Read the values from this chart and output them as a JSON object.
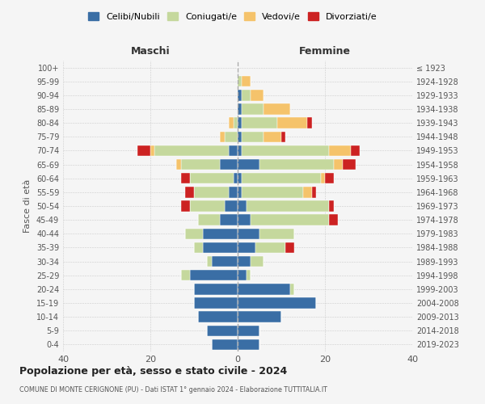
{
  "age_groups": [
    "0-4",
    "5-9",
    "10-14",
    "15-19",
    "20-24",
    "25-29",
    "30-34",
    "35-39",
    "40-44",
    "45-49",
    "50-54",
    "55-59",
    "60-64",
    "65-69",
    "70-74",
    "75-79",
    "80-84",
    "85-89",
    "90-94",
    "95-99",
    "100+"
  ],
  "birth_years": [
    "2019-2023",
    "2014-2018",
    "2009-2013",
    "2004-2008",
    "1999-2003",
    "1994-1998",
    "1989-1993",
    "1984-1988",
    "1979-1983",
    "1974-1978",
    "1969-1973",
    "1964-1968",
    "1959-1963",
    "1954-1958",
    "1949-1953",
    "1944-1948",
    "1939-1943",
    "1934-1938",
    "1929-1933",
    "1924-1928",
    "≤ 1923"
  ],
  "maschi": {
    "celibi": [
      6,
      7,
      9,
      10,
      10,
      11,
      6,
      8,
      8,
      4,
      3,
      2,
      1,
      4,
      2,
      0,
      0,
      0,
      0,
      0,
      0
    ],
    "coniugati": [
      0,
      0,
      0,
      0,
      0,
      2,
      1,
      2,
      4,
      5,
      8,
      8,
      10,
      9,
      17,
      3,
      1,
      0,
      0,
      0,
      0
    ],
    "vedovi": [
      0,
      0,
      0,
      0,
      0,
      0,
      0,
      0,
      0,
      0,
      0,
      0,
      0,
      1,
      1,
      1,
      1,
      0,
      0,
      0,
      0
    ],
    "divorziati": [
      0,
      0,
      0,
      0,
      0,
      0,
      0,
      0,
      0,
      0,
      2,
      2,
      2,
      0,
      3,
      0,
      0,
      0,
      0,
      0,
      0
    ]
  },
  "femmine": {
    "nubili": [
      5,
      5,
      10,
      18,
      12,
      2,
      3,
      4,
      5,
      3,
      2,
      1,
      1,
      5,
      1,
      1,
      1,
      1,
      1,
      0,
      0
    ],
    "coniugate": [
      0,
      0,
      0,
      0,
      1,
      1,
      3,
      7,
      8,
      18,
      19,
      14,
      18,
      17,
      20,
      5,
      8,
      5,
      2,
      1,
      0
    ],
    "vedove": [
      0,
      0,
      0,
      0,
      0,
      0,
      0,
      0,
      0,
      0,
      0,
      2,
      1,
      2,
      5,
      4,
      7,
      6,
      3,
      2,
      0
    ],
    "divorziate": [
      0,
      0,
      0,
      0,
      0,
      0,
      0,
      2,
      0,
      2,
      1,
      1,
      2,
      3,
      2,
      1,
      1,
      0,
      0,
      0,
      0
    ]
  },
  "colors": {
    "celibi_nubili": "#3a6ea5",
    "coniugati": "#c5d89d",
    "vedovi": "#f5c36b",
    "divorziati": "#cc2222"
  },
  "xlim": 40,
  "title": "Popolazione per età, sesso e stato civile - 2024",
  "subtitle": "COMUNE DI MONTE CERIGNONE (PU) - Dati ISTAT 1° gennaio 2024 - Elaborazione TUTTITALIA.IT",
  "ylabel_left": "Fasce di età",
  "xlabel_maschi": "Maschi",
  "xlabel_femmine": "Femmine",
  "legend_labels": [
    "Celibi/Nubili",
    "Coniugati/e",
    "Vedovi/e",
    "Divorziati/e"
  ],
  "bg_color": "#f5f5f5",
  "grid_color": "#cccccc"
}
